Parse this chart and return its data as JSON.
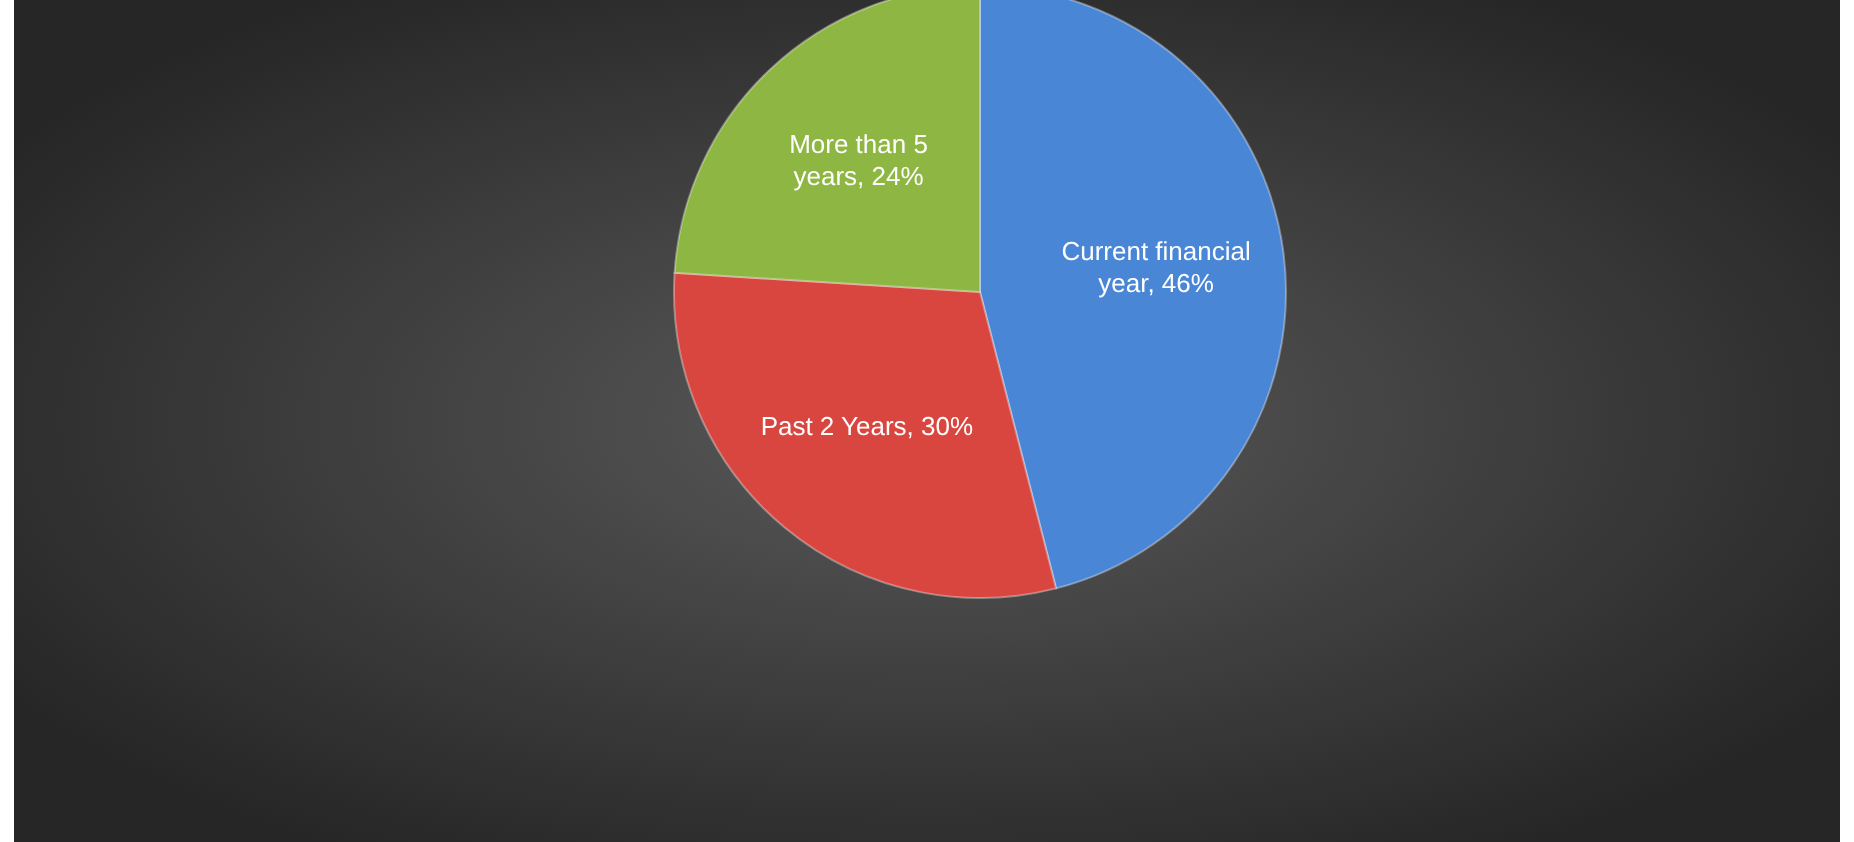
{
  "chart_data": {
    "type": "pie",
    "categories": [
      "Current financial year",
      "Past 2 Years",
      "More than 5 years"
    ],
    "values": [
      46,
      30,
      24
    ],
    "value_labels": [
      "46%",
      "30%",
      "24%"
    ],
    "colors": [
      "#4a86d6",
      "#d9463f",
      "#8db642"
    ],
    "data_labels": true
  }
}
